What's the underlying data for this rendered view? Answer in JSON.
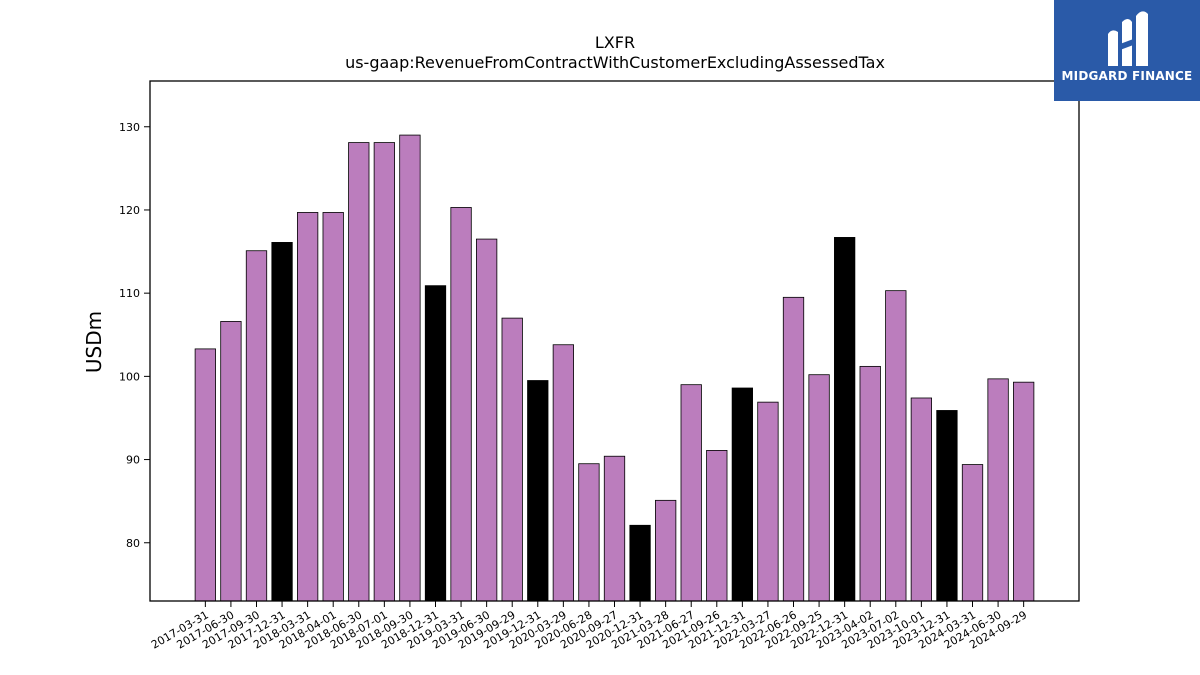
{
  "chart_data": {
    "type": "bar",
    "title": "LXFR",
    "subtitle": "us-gaap:RevenueFromContractWithCustomerExcludingAssessedTax",
    "xlabel": "",
    "ylabel": "USDm",
    "ylim": [
      73,
      135.5
    ],
    "yticks": [
      80,
      90,
      100,
      110,
      120,
      130
    ],
    "grid": false,
    "colors": {
      "default": "#bb7dbd",
      "highlight": "#000000",
      "edge": "#000000"
    },
    "categories": [
      "2017-03-31",
      "2017-06-30",
      "2017-09-30",
      "2017-12-31",
      "2018-03-31",
      "2018-04-01",
      "2018-06-30",
      "2018-07-01",
      "2018-09-30",
      "2018-12-31",
      "2019-03-31",
      "2019-06-30",
      "2019-09-29",
      "2019-12-31",
      "2020-03-29",
      "2020-06-28",
      "2020-09-27",
      "2020-12-31",
      "2021-03-28",
      "2021-06-27",
      "2021-09-26",
      "2021-12-31",
      "2022-03-27",
      "2022-06-26",
      "2022-09-25",
      "2022-12-31",
      "2023-04-02",
      "2023-07-02",
      "2023-10-01",
      "2023-12-31",
      "2024-03-31",
      "2024-06-30",
      "2024-09-29"
    ],
    "values": [
      103.3,
      106.6,
      115.1,
      116.1,
      119.7,
      119.7,
      128.1,
      128.1,
      129.0,
      110.9,
      120.3,
      116.5,
      107.0,
      99.5,
      103.8,
      89.5,
      90.4,
      82.1,
      85.1,
      99.0,
      91.1,
      98.6,
      96.9,
      109.5,
      100.2,
      116.7,
      101.2,
      110.3,
      97.4,
      95.9,
      89.4,
      99.7,
      99.3
    ],
    "highlighted": [
      false,
      false,
      false,
      true,
      false,
      false,
      false,
      false,
      false,
      true,
      false,
      false,
      false,
      true,
      false,
      false,
      false,
      true,
      false,
      false,
      false,
      true,
      false,
      false,
      false,
      true,
      false,
      false,
      false,
      true,
      false,
      false,
      false
    ]
  },
  "logo": {
    "text": "MIDGARD FINANCE"
  }
}
